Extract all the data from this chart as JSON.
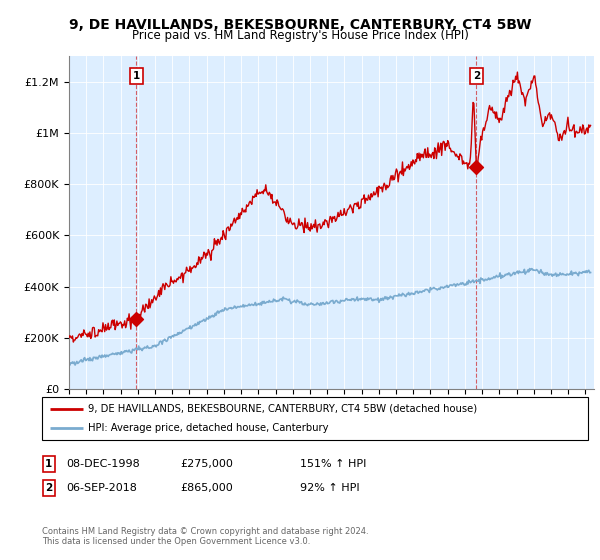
{
  "title": "9, DE HAVILLANDS, BEKESBOURNE, CANTERBURY, CT4 5BW",
  "subtitle": "Price paid vs. HM Land Registry's House Price Index (HPI)",
  "ylabel_ticks": [
    "£0",
    "£200K",
    "£400K",
    "£600K",
    "£800K",
    "£1M",
    "£1.2M"
  ],
  "ylabel_values": [
    0,
    200000,
    400000,
    600000,
    800000,
    1000000,
    1200000
  ],
  "ylim": [
    0,
    1300000
  ],
  "xlim_start": 1995.0,
  "xlim_end": 2025.5,
  "sale1_year": 1998.92,
  "sale1_price": 275000,
  "sale2_year": 2018.67,
  "sale2_price": 865000,
  "red_color": "#cc0000",
  "blue_color": "#7aabcf",
  "bg_color": "#ddeeff",
  "legend_line1": "9, DE HAVILLANDS, BEKESBOURNE, CANTERBURY, CT4 5BW (detached house)",
  "legend_line2": "HPI: Average price, detached house, Canterbury",
  "footer1": "Contains HM Land Registry data © Crown copyright and database right 2024.",
  "footer2": "This data is licensed under the Open Government Licence v3.0.",
  "table_row1": [
    "1",
    "08-DEC-1998",
    "£275,000",
    "151% ↑ HPI"
  ],
  "table_row2": [
    "2",
    "06-SEP-2018",
    "£865,000",
    "92% ↑ HPI"
  ]
}
